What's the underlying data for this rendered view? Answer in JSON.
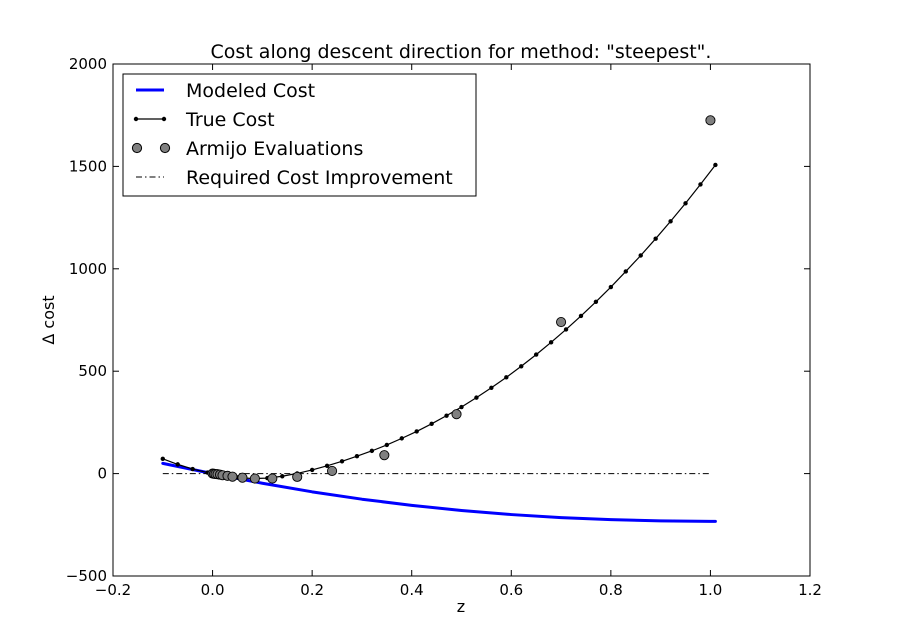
{
  "chart_data": {
    "type": "line",
    "title": "Cost along descent direction for method: \"steepest\".",
    "xlabel": "z",
    "ylabel": "Δ cost",
    "xlim": [
      -0.2,
      1.2
    ],
    "ylim": [
      -500,
      2000
    ],
    "xticks": [
      "−0.2",
      "0.0",
      "0.2",
      "0.4",
      "0.6",
      "0.8",
      "1.0",
      "1.2"
    ],
    "yticks": [
      "−500",
      "0",
      "500",
      "1000",
      "1500",
      "2000"
    ],
    "xtick_values": [
      -0.2,
      0.0,
      0.2,
      0.4,
      0.6,
      0.8,
      1.0,
      1.2
    ],
    "ytick_values": [
      -500,
      0,
      500,
      1000,
      1500,
      2000
    ],
    "grid": false,
    "legend_position": "top-left",
    "series": [
      {
        "name": "Modeled Cost",
        "style": "thick-line",
        "color": "#0000ff",
        "x": [
          -0.1,
          0.0,
          0.1,
          0.2,
          0.3,
          0.4,
          0.5,
          0.6,
          0.7,
          0.8,
          0.9,
          1.0,
          1.01
        ],
        "y": [
          50,
          0,
          -47,
          -89,
          -125,
          -155,
          -180,
          -200,
          -215,
          -225,
          -231,
          -233,
          -233
        ]
      },
      {
        "name": "True Cost",
        "style": "line-dots",
        "color": "#000000",
        "x": [
          -0.1,
          -0.07,
          -0.04,
          -0.01,
          0.02,
          0.05,
          0.08,
          0.11,
          0.14,
          0.17,
          0.2,
          0.23,
          0.26,
          0.29,
          0.32,
          0.35,
          0.38,
          0.41,
          0.44,
          0.47,
          0.5,
          0.53,
          0.56,
          0.59,
          0.62,
          0.65,
          0.68,
          0.71,
          0.74,
          0.77,
          0.8,
          0.83,
          0.86,
          0.89,
          0.92,
          0.95,
          0.98,
          1.01
        ],
        "y": [
          72,
          45,
          22,
          5,
          -10,
          -19,
          -24,
          -22,
          -13,
          1,
          18,
          38,
          60,
          85,
          111,
          140,
          172,
          206,
          243,
          283,
          325,
          371,
          419,
          470,
          524,
          581,
          641,
          704,
          770,
          839,
          911,
          987,
          1065,
          1147,
          1232,
          1320,
          1412,
          1507
        ]
      },
      {
        "name": "Armijo Evaluations",
        "style": "markers",
        "color": "#808080",
        "x": [
          0.0,
          0.003,
          0.006,
          0.01,
          0.015,
          0.02,
          0.03,
          0.04,
          0.06,
          0.085,
          0.12,
          0.17,
          0.24,
          0.345,
          0.49,
          0.7,
          1.0
        ],
        "y": [
          0,
          -1,
          -2,
          -3,
          -5,
          -8,
          -11,
          -15,
          -20,
          -24,
          -24,
          -16,
          13,
          90,
          290,
          740,
          1725
        ]
      },
      {
        "name": "Required Cost Improvement",
        "style": "dash-dot",
        "color": "#000000",
        "x": [
          -0.1,
          1.0
        ],
        "y": [
          0,
          0
        ]
      }
    ]
  }
}
